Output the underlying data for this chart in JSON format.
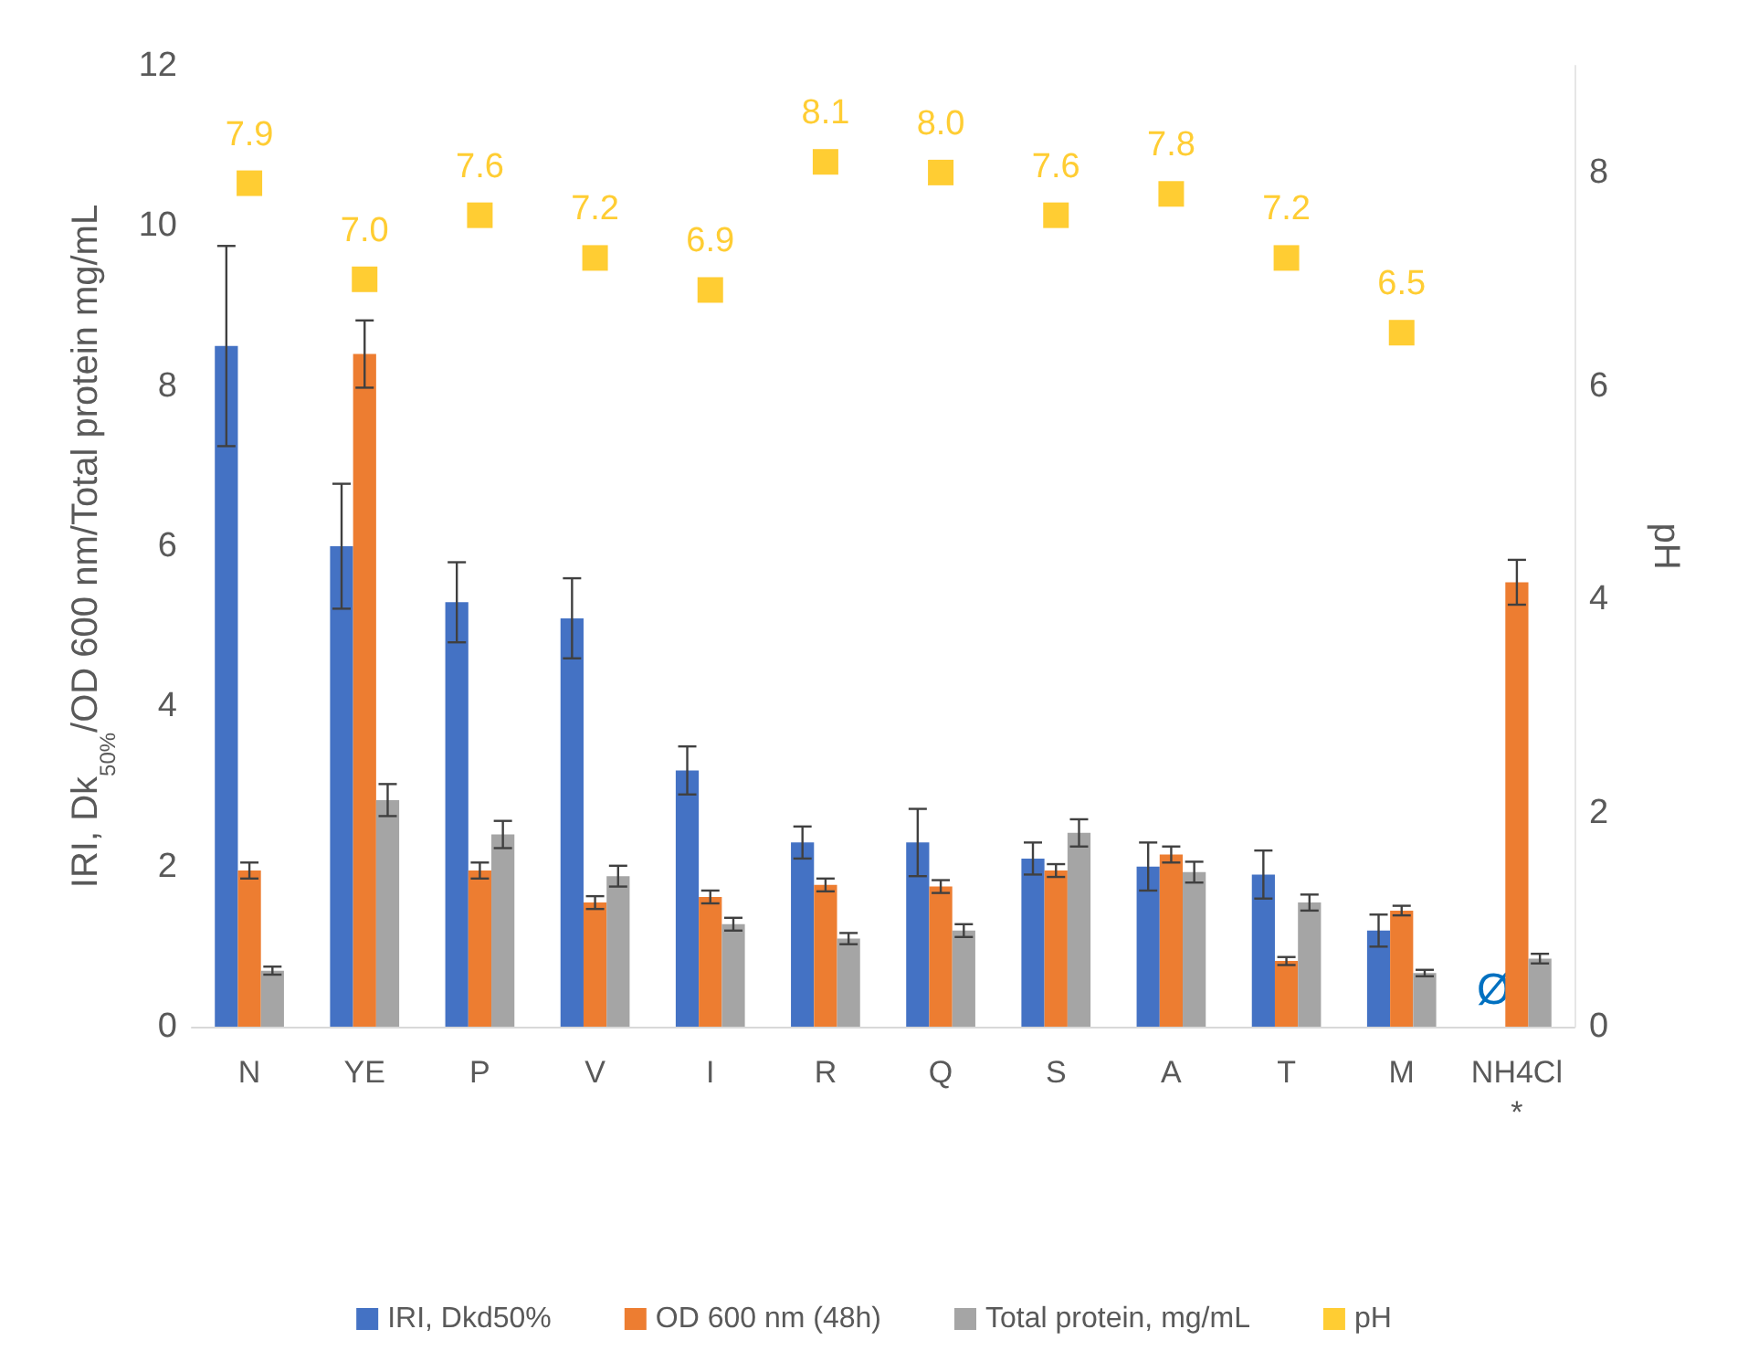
{
  "chart_data": {
    "type": "bar",
    "ylabel": "IRI, Dk$_{50%}$/OD 600 nm/Total protein mg/mL",
    "y2label": "pH",
    "categories": [
      "N",
      "YE",
      "P",
      "V",
      "I",
      "R",
      "Q",
      "S",
      "A",
      "T",
      "M",
      "NH4Cl\n*"
    ],
    "ylim": [
      0,
      12
    ],
    "yticks": [
      0,
      2,
      4,
      6,
      8,
      10,
      12
    ],
    "y2lim": [
      0,
      9
    ],
    "y2ticks": [
      0,
      2,
      4,
      6,
      8
    ],
    "series": [
      {
        "name": "IRI, Dkd50%",
        "color": "#4472c4",
        "values": [
          8.5,
          6.0,
          5.3,
          5.1,
          3.2,
          2.3,
          2.3,
          2.1,
          2.0,
          1.9,
          1.2,
          null
        ],
        "errors": [
          1.25,
          0.78,
          0.5,
          0.5,
          0.3,
          0.2,
          0.42,
          0.2,
          0.3,
          0.3,
          0.2,
          null
        ]
      },
      {
        "name": "OD 600 nm (48h)",
        "color": "#ed7d31",
        "values": [
          1.95,
          8.4,
          1.95,
          1.55,
          1.62,
          1.77,
          1.75,
          1.95,
          2.15,
          0.82,
          1.45,
          5.55
        ],
        "errors": [
          0.1,
          0.42,
          0.1,
          0.08,
          0.08,
          0.08,
          0.08,
          0.08,
          0.1,
          0.05,
          0.06,
          0.28
        ]
      },
      {
        "name": "Total protein, mg/mL",
        "color": "#a5a5a5",
        "values": [
          0.7,
          2.83,
          2.4,
          1.88,
          1.28,
          1.1,
          1.2,
          2.42,
          1.93,
          1.55,
          0.67,
          0.85
        ],
        "errors": [
          0.05,
          0.2,
          0.17,
          0.13,
          0.08,
          0.07,
          0.08,
          0.17,
          0.13,
          0.1,
          0.04,
          0.06
        ]
      },
      {
        "name": "pH",
        "type": "scatter",
        "axis": "y2",
        "marker": "square",
        "color": "#ffc000",
        "values": [
          7.9,
          7.0,
          7.6,
          7.2,
          6.9,
          8.1,
          8.0,
          7.6,
          7.8,
          7.2,
          6.5,
          null
        ],
        "value_labels": [
          "7.9",
          "7.0",
          "7.6",
          "7.2",
          "6.9",
          "8.1",
          "8.0",
          "7.6",
          "7.8",
          "7.2",
          "6.5",
          null
        ]
      }
    ],
    "annotations": [
      {
        "text": "Ø",
        "x": "NH4Cl\n*",
        "y": 0
      }
    ],
    "grid": false,
    "legend": "bottom"
  }
}
